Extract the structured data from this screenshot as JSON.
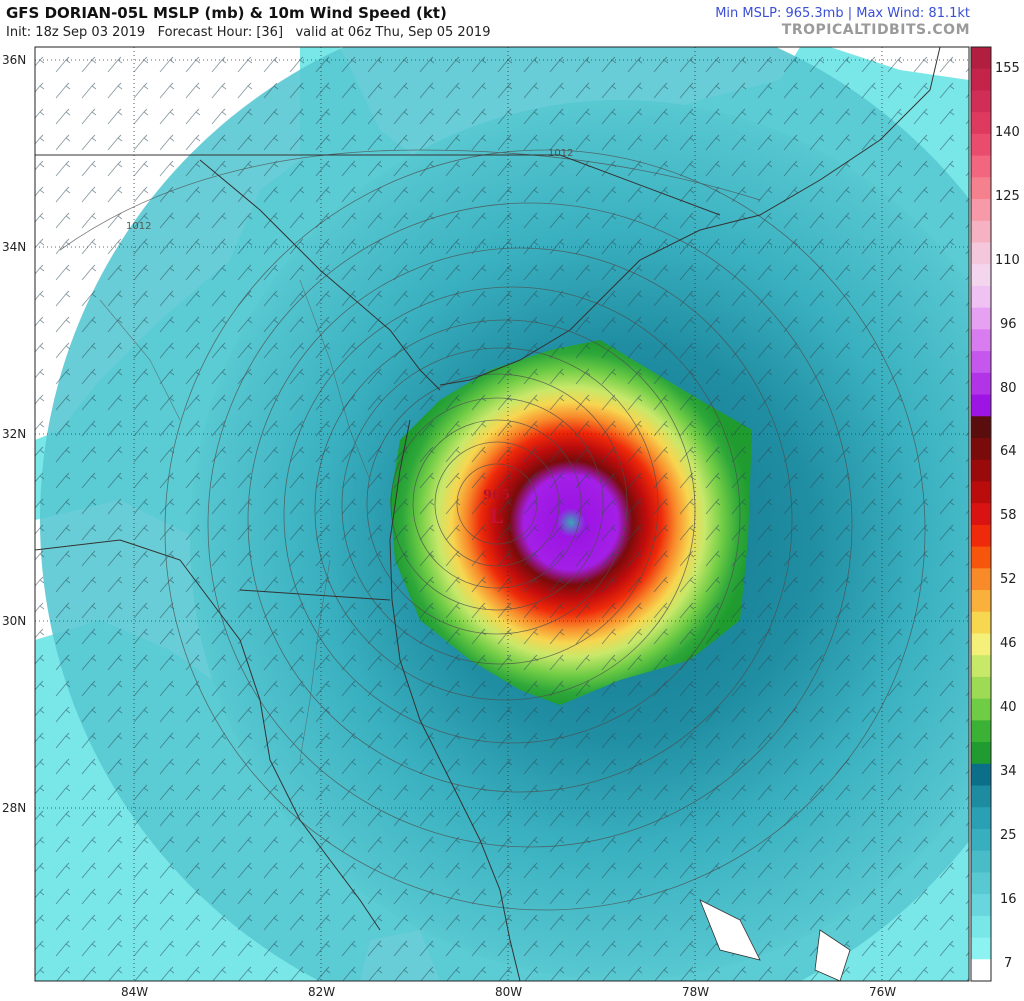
{
  "header": {
    "title": "GFS DORIAN-05L MSLP (mb) & 10m Wind Speed (kt)",
    "init": "Init: 18z Sep 03 2019",
    "forecast_hour": "Forecast Hour: [36]",
    "valid": "valid at 06z Thu, Sep 05 2019",
    "stats": "Min MSLP: 965.3mb | Max Wind: 81.1kt",
    "brand": "TROPICALTIDBITS.COM"
  },
  "map": {
    "lat_labels": [
      "36N",
      "34N",
      "32N",
      "30N",
      "28N"
    ],
    "lon_labels": [
      "84W",
      "82W",
      "80W",
      "78W",
      "76W"
    ],
    "low": {
      "symbol": "L",
      "pressure": "965"
    },
    "isobar_labels": [
      "1012",
      "1012"
    ]
  },
  "colorbar": {
    "labels": [
      "155",
      "140",
      "125",
      "110",
      "96",
      "80",
      "64",
      "58",
      "52",
      "46",
      "40",
      "34",
      "25",
      "16",
      "7"
    ],
    "colors": [
      "#b21e3f",
      "#c4244a",
      "#d12e57",
      "#de3a5f",
      "#ea4c6e",
      "#f2677f",
      "#f5818f",
      "#f799a8",
      "#f6b2c3",
      "#f5c7dd",
      "#f3d6ee",
      "#f0c2f4",
      "#e6a1f2",
      "#d87cf0",
      "#c657ee",
      "#b234e9",
      "#9c15e4",
      "#5a0d0d",
      "#7a0b0b",
      "#9a0a0a",
      "#bb0c0c",
      "#d91212",
      "#ee2a0a",
      "#f5560c",
      "#f88a2a",
      "#f9b13c",
      "#f7d650",
      "#f4f07a",
      "#c8e86a",
      "#9edb55",
      "#6fcc45",
      "#3bb235",
      "#1f9b2f",
      "#0c6f8a",
      "#1d8ba0",
      "#2aa0b4",
      "#38afbf",
      "#49bcc8",
      "#58c8d1",
      "#68d6dc",
      "#79e6e8",
      "#8cf3f2",
      "#ffffff"
    ]
  }
}
